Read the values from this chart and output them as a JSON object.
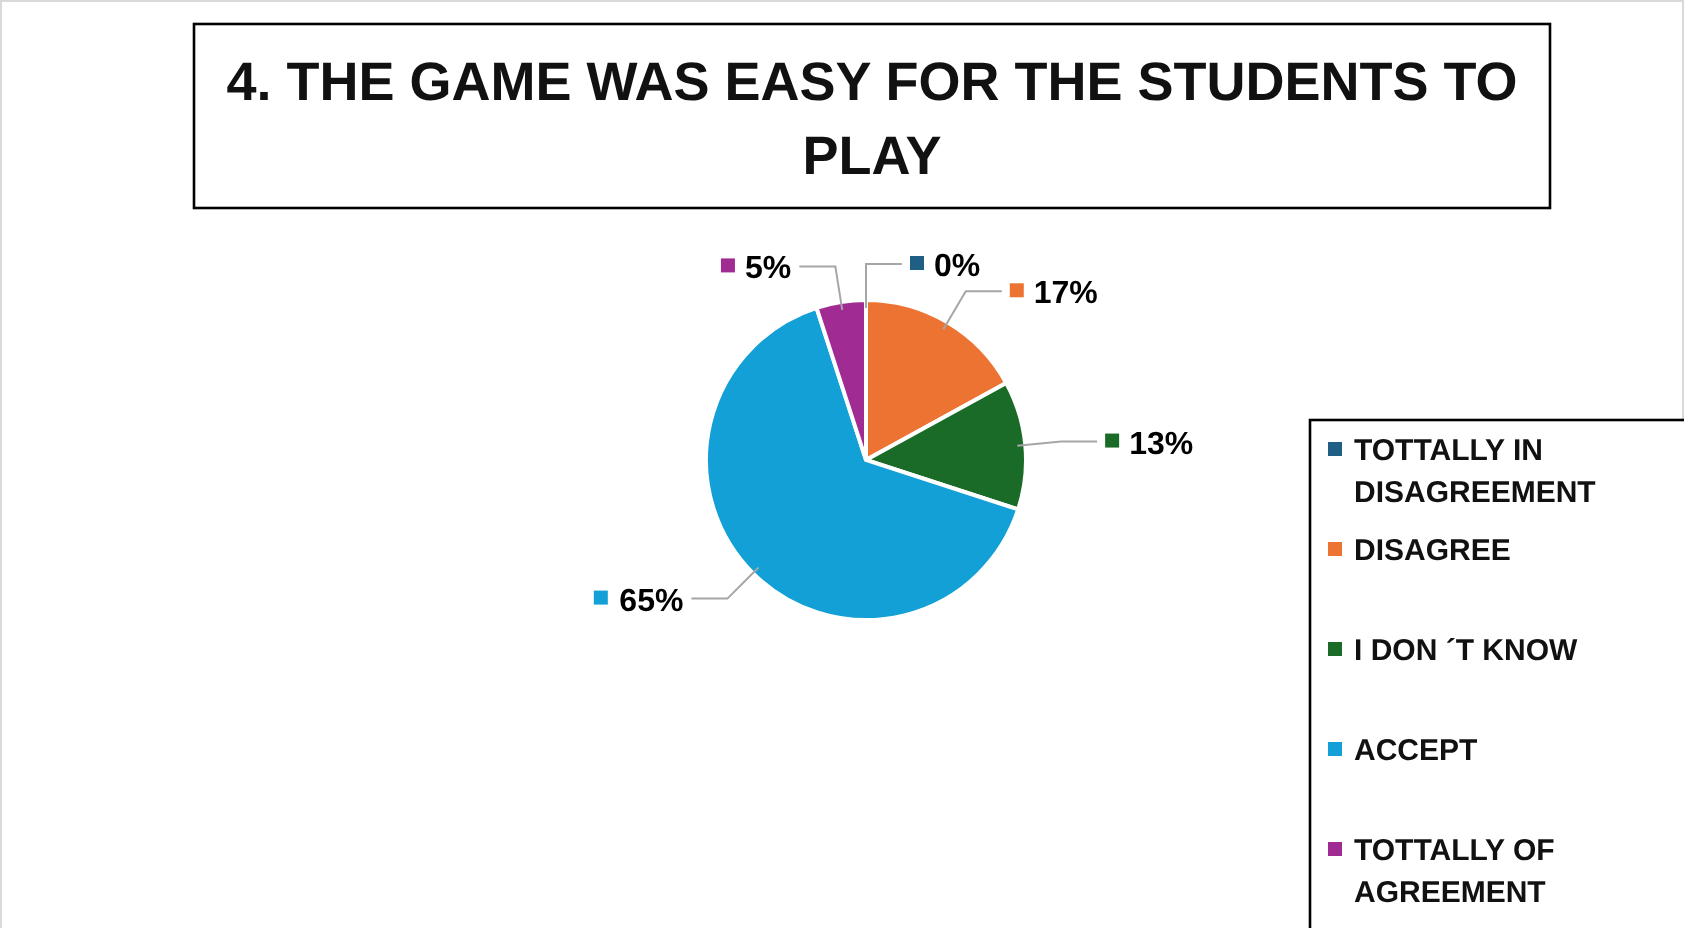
{
  "chart_data": {
    "type": "pie",
    "title": "4. THE GAME WAS EASY FOR THE STUDENTS TO PLAY",
    "categories": [
      "TOTTALLY IN DISAGREEMENT",
      "DISAGREE",
      "I DON ´T KNOW",
      "ACCEPT",
      "TOTTALLY OF AGREEMENT"
    ],
    "values": [
      0,
      17,
      13,
      65,
      5
    ],
    "colors": [
      "#1f5f86",
      "#ec7331",
      "#1a6b27",
      "#12a0d6",
      "#a02b93"
    ],
    "value_labels": [
      "0%",
      "17%",
      "13%",
      "65%",
      "5%"
    ],
    "legend": "right"
  }
}
